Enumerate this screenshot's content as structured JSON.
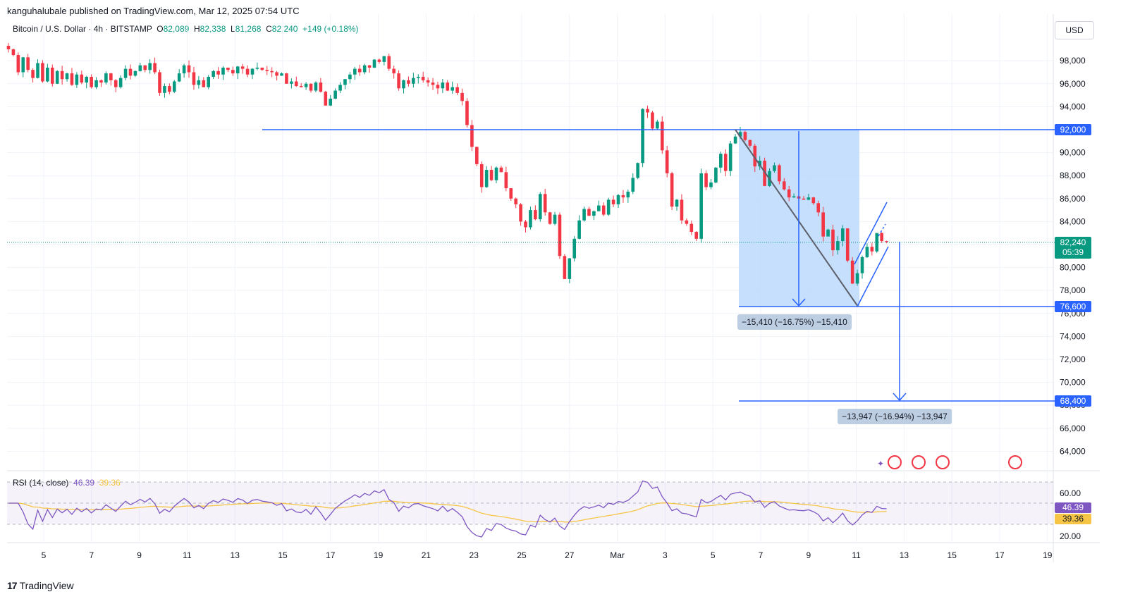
{
  "header": {
    "published": "kanguhalubale published on TradingView.com, Mar 12, 2025 07:54 UTC"
  },
  "symbol": {
    "name": "Bitcoin / U.S. Dollar · 4h · BITSTAMP",
    "open_label": "O",
    "open": "82,089",
    "high_label": "H",
    "high": "82,338",
    "low_label": "L",
    "low": "81,268",
    "close_label": "C",
    "close": "82,240",
    "change": "+149 (+0.18%)"
  },
  "currency": "USD",
  "brand": "TradingView",
  "price_tags": {
    "level_92000": "92,000",
    "level_76600": "76,600",
    "level_68400": "68,400",
    "last_price": "82,240",
    "countdown": "05:39",
    "rsi_value": "46.39",
    "rsi_ma_value": "39.36"
  },
  "measurements": {
    "first": "−15,410 (−16.75%) −15,410",
    "second": "−13,947 (−16.94%) −13,947"
  },
  "rsi": {
    "label": "RSI (14, close)",
    "value": "46.39",
    "ma_value": "39.36",
    "ticks": [
      "60.00",
      "20.00"
    ]
  },
  "colors": {
    "up": "#089981",
    "down": "#f23645",
    "line_blue": "#2962ff",
    "rsi_line": "#7e57c2",
    "rsi_ma": "#f7c546",
    "measure_fill": "#bbd9fb"
  },
  "chart_data": {
    "type": "candlestick",
    "title": "Bitcoin / U.S. Dollar · 4h · BITSTAMP",
    "y_ticks": [
      "98,000",
      "96,000",
      "94,000",
      "92,000",
      "90,000",
      "88,000",
      "86,000",
      "84,000",
      "82,000",
      "80,000",
      "78,000",
      "76,000",
      "74,000",
      "72,000",
      "70,000",
      "68,000",
      "66,000",
      "64,000"
    ],
    "ylim": [
      62500,
      100500
    ],
    "x_ticks": [
      "5",
      "7",
      "9",
      "11",
      "13",
      "15",
      "17",
      "19",
      "21",
      "23",
      "25",
      "27",
      "Mar",
      "3",
      "5",
      "7",
      "9",
      "11",
      "13",
      "15",
      "17",
      "19"
    ],
    "horizontal_levels": [
      92000,
      76600,
      68400
    ],
    "close_path": [
      [
        0,
        99000
      ],
      [
        1,
        98500
      ],
      [
        2,
        97000
      ],
      [
        3,
        98300
      ],
      [
        4,
        97200
      ],
      [
        5,
        96500
      ],
      [
        6,
        97800
      ],
      [
        7,
        96200
      ],
      [
        8,
        97400
      ],
      [
        9,
        96000
      ],
      [
        10,
        97100
      ],
      [
        11,
        96400
      ],
      [
        12,
        96900
      ],
      [
        13,
        95900
      ],
      [
        14,
        96800
      ],
      [
        15,
        96100
      ],
      [
        16,
        96600
      ],
      [
        17,
        95700
      ],
      [
        18,
        96300
      ],
      [
        19,
        96100
      ],
      [
        20,
        96900
      ],
      [
        21,
        96300
      ],
      [
        22,
        95700
      ],
      [
        23,
        96500
      ],
      [
        24,
        97300
      ],
      [
        25,
        96700
      ],
      [
        26,
        97100
      ],
      [
        27,
        97600
      ],
      [
        28,
        97200
      ],
      [
        29,
        97800
      ],
      [
        30,
        97000
      ],
      [
        31,
        95200
      ],
      [
        32,
        95800
      ],
      [
        33,
        95300
      ],
      [
        34,
        96200
      ],
      [
        35,
        96900
      ],
      [
        36,
        97600
      ],
      [
        37,
        97000
      ],
      [
        38,
        95900
      ],
      [
        39,
        96300
      ],
      [
        40,
        95700
      ],
      [
        41,
        96600
      ],
      [
        42,
        97100
      ],
      [
        43,
        96800
      ],
      [
        44,
        97400
      ],
      [
        45,
        97200
      ],
      [
        46,
        96900
      ],
      [
        47,
        97500
      ],
      [
        48,
        97300
      ],
      [
        49,
        96800
      ],
      [
        50,
        97300
      ],
      [
        51,
        97400
      ],
      [
        52,
        97200
      ],
      [
        53,
        97100
      ],
      [
        54,
        97000
      ],
      [
        55,
        96700
      ],
      [
        56,
        96900
      ],
      [
        57,
        96000
      ],
      [
        58,
        96200
      ],
      [
        59,
        95800
      ],
      [
        60,
        95700
      ],
      [
        61,
        96000
      ],
      [
        62,
        95400
      ],
      [
        63,
        96100
      ],
      [
        64,
        95300
      ],
      [
        65,
        94100
      ],
      [
        66,
        94700
      ],
      [
        67,
        95400
      ],
      [
        68,
        95900
      ],
      [
        69,
        96400
      ],
      [
        70,
        96800
      ],
      [
        71,
        97300
      ],
      [
        72,
        97000
      ],
      [
        73,
        97600
      ],
      [
        74,
        97400
      ],
      [
        75,
        98100
      ],
      [
        76,
        97900
      ],
      [
        77,
        98400
      ],
      [
        78,
        97300
      ],
      [
        79,
        96900
      ],
      [
        80,
        95600
      ],
      [
        81,
        96300
      ],
      [
        82,
        96000
      ],
      [
        83,
        96500
      ],
      [
        84,
        96600
      ],
      [
        85,
        96300
      ],
      [
        86,
        96100
      ],
      [
        87,
        95900
      ],
      [
        88,
        95600
      ],
      [
        89,
        96100
      ],
      [
        90,
        95400
      ],
      [
        91,
        95700
      ],
      [
        92,
        95200
      ],
      [
        93,
        94500
      ],
      [
        94,
        92400
      ],
      [
        95,
        90500
      ],
      [
        96,
        89000
      ],
      [
        97,
        87000
      ],
      [
        98,
        88500
      ],
      [
        99,
        87600
      ],
      [
        100,
        88700
      ],
      [
        101,
        88300
      ],
      [
        102,
        86900
      ],
      [
        103,
        86000
      ],
      [
        104,
        85500
      ],
      [
        105,
        84000
      ],
      [
        106,
        83500
      ],
      [
        107,
        85000
      ],
      [
        108,
        84200
      ],
      [
        109,
        86400
      ],
      [
        110,
        84800
      ],
      [
        111,
        83800
      ],
      [
        112,
        84600
      ],
      [
        113,
        81000
      ],
      [
        114,
        79000
      ],
      [
        115,
        80800
      ],
      [
        116,
        82500
      ],
      [
        117,
        84100
      ],
      [
        118,
        85100
      ],
      [
        119,
        84500
      ],
      [
        120,
        84900
      ],
      [
        121,
        85400
      ],
      [
        122,
        84600
      ],
      [
        123,
        85900
      ],
      [
        124,
        85500
      ],
      [
        125,
        86300
      ],
      [
        126,
        86100
      ],
      [
        127,
        86600
      ],
      [
        128,
        87800
      ],
      [
        129,
        89100
      ],
      [
        130,
        93800
      ],
      [
        131,
        93500
      ],
      [
        132,
        92100
      ],
      [
        133,
        92700
      ],
      [
        134,
        90200
      ],
      [
        135,
        88200
      ],
      [
        136,
        85300
      ],
      [
        137,
        85900
      ],
      [
        138,
        84100
      ],
      [
        139,
        83800
      ],
      [
        140,
        83100
      ],
      [
        141,
        82500
      ],
      [
        142,
        88200
      ],
      [
        143,
        87000
      ],
      [
        144,
        87400
      ],
      [
        145,
        88700
      ],
      [
        146,
        89900
      ],
      [
        147,
        88400
      ],
      [
        148,
        90800
      ],
      [
        149,
        91400
      ],
      [
        150,
        91800
      ],
      [
        151,
        91100
      ],
      [
        152,
        90600
      ],
      [
        153,
        88800
      ],
      [
        154,
        89300
      ],
      [
        155,
        87100
      ],
      [
        156,
        88400
      ],
      [
        157,
        88900
      ],
      [
        158,
        87500
      ],
      [
        159,
        86800
      ],
      [
        160,
        86100
      ],
      [
        161,
        86200
      ],
      [
        162,
        86000
      ],
      [
        163,
        85900
      ],
      [
        164,
        86100
      ],
      [
        165,
        85600
      ],
      [
        166,
        84800
      ],
      [
        167,
        82700
      ],
      [
        168,
        83300
      ],
      [
        169,
        81500
      ],
      [
        170,
        82300
      ],
      [
        171,
        83400
      ],
      [
        172,
        80600
      ],
      [
        173,
        78600
      ],
      [
        174,
        79500
      ],
      [
        175,
        80900
      ],
      [
        176,
        81800
      ],
      [
        177,
        81400
      ],
      [
        178,
        83000
      ],
      [
        179,
        82300
      ],
      [
        180,
        82240
      ]
    ]
  }
}
